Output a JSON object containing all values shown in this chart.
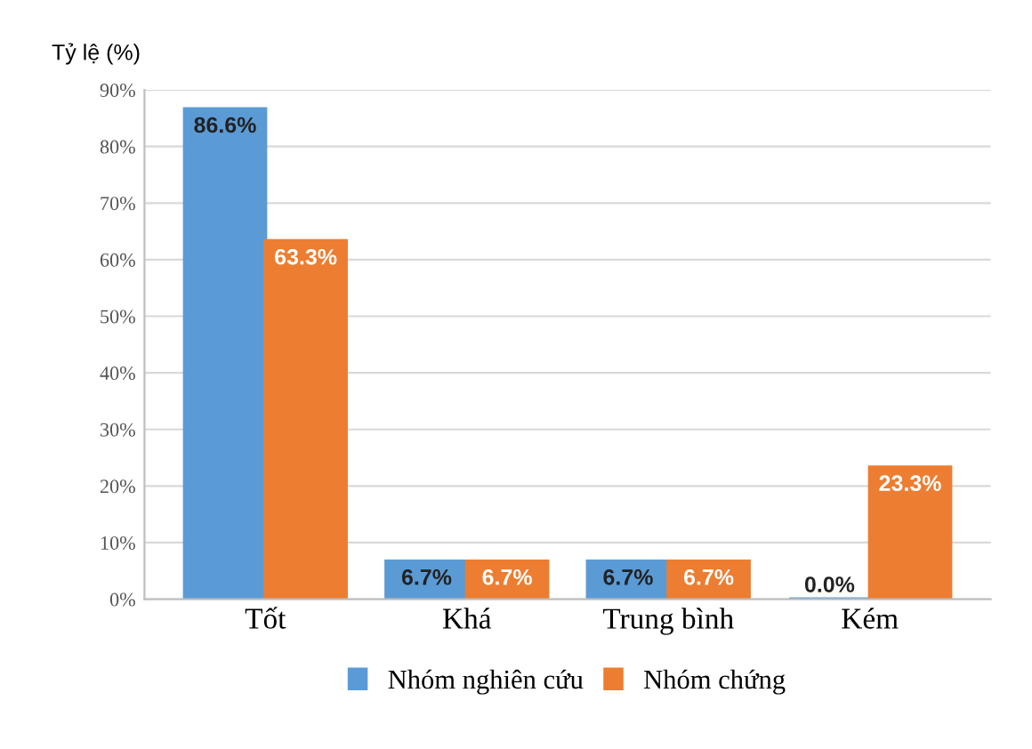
{
  "chart_data": {
    "type": "bar",
    "ylabel": "Tỷ lệ (%)",
    "categories": [
      "Tốt",
      "Khá",
      "Trung bình",
      "Kém"
    ],
    "series": [
      {
        "name": "Nhóm nghiên cứu",
        "color": "#5b9bd5",
        "values": [
          86.6,
          6.7,
          6.7,
          0.0
        ],
        "value_labels": [
          "86.6%",
          "6.7%",
          "6.7%",
          "0.0%"
        ]
      },
      {
        "name": "Nhóm chứng",
        "color": "#ed7d31",
        "values": [
          63.3,
          6.7,
          6.7,
          23.3
        ],
        "value_labels": [
          "63.3%",
          "6.7%",
          "6.7%",
          "23.3%"
        ]
      }
    ],
    "ylim": [
      0,
      90
    ],
    "yticks": [
      {
        "value": 0,
        "label": "0%"
      },
      {
        "value": 10,
        "label": "10%"
      },
      {
        "value": 20,
        "label": "20%"
      },
      {
        "value": 30,
        "label": "30%"
      },
      {
        "value": 40,
        "label": "40%"
      },
      {
        "value": 50,
        "label": "50%"
      },
      {
        "value": 60,
        "label": "60%"
      },
      {
        "value": 70,
        "label": "70%"
      },
      {
        "value": 80,
        "label": "80%"
      },
      {
        "value": 90,
        "label": "90%"
      }
    ],
    "grid": "y",
    "legend": "bottom"
  }
}
